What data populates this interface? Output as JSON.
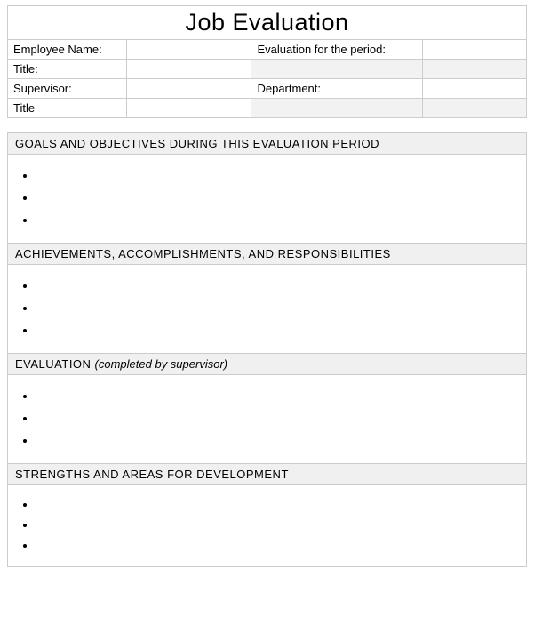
{
  "colors": {
    "border": "#cccccc",
    "shaded_bg": "#f2f2f2",
    "section_header_bg": "#f0f0f0",
    "text": "#000000",
    "page_bg": "#ffffff"
  },
  "typography": {
    "title_fontsize": 27,
    "body_fontsize": 13,
    "font_family": "Arial"
  },
  "title": "Job Evaluation",
  "header_rows": [
    {
      "c1_label": "Employee Name:",
      "c1_value": "",
      "c2_label": "Evaluation  for the period:",
      "c2_value": "",
      "c2_shaded": false,
      "c2_value_shaded": false
    },
    {
      "c1_label": "Title:",
      "c1_value": "",
      "c2_label": "",
      "c2_value": "",
      "c2_shaded": true,
      "c2_value_shaded": true
    },
    {
      "c1_label": "Supervisor:",
      "c1_value": "",
      "c2_label": "Department:",
      "c2_value": "",
      "c2_shaded": false,
      "c2_value_shaded": false
    },
    {
      "c1_label": "Title",
      "c1_value": "",
      "c2_label": "",
      "c2_value": "",
      "c2_shaded": true,
      "c2_value_shaded": true
    }
  ],
  "columns": {
    "c1_label_w": "23%",
    "c1_value_w": "24%",
    "c2_label_w": "33%",
    "c2_value_w": "20%"
  },
  "sections": [
    {
      "header": "GOALS AND OBJECTIVES  DURING THIS EVALUATION  PERIOD",
      "header_suffix_italic": "",
      "bullets": [
        "",
        "",
        ""
      ]
    },
    {
      "header": "ACHIEVEMENTS,  ACCOMPLISHMENTS,  AND RESPONSIBILITIES",
      "header_suffix_italic": "",
      "bullets": [
        "",
        "",
        ""
      ]
    },
    {
      "header": "EVALUATION  ",
      "header_suffix_italic": "(completed by supervisor)",
      "bullets": [
        "",
        "",
        ""
      ]
    },
    {
      "header": "STRENGTHS  AND AREAS  FOR DEVELOPMENT",
      "header_suffix_italic": "",
      "bullets": [
        "",
        "",
        ""
      ]
    }
  ]
}
